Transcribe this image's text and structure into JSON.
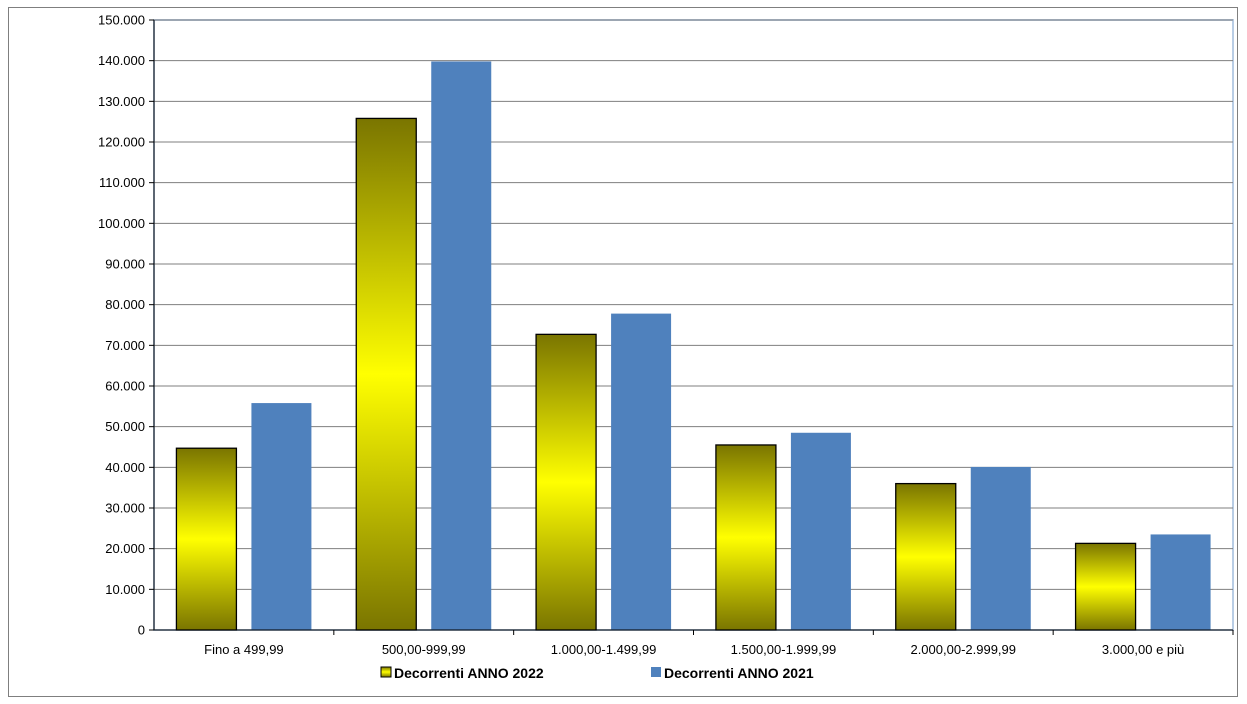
{
  "chart_data": {
    "type": "bar",
    "title": "",
    "xlabel": "",
    "ylabel": "",
    "categories": [
      "Fino a 499,99",
      "500,00-999,99",
      "1.000,00-1.499,99",
      "1.500,00-1.999,99",
      "2.000,00-2.999,99",
      "3.000,00 e più"
    ],
    "series": [
      {
        "name": "Decorrenti ANNO 2022",
        "values": [
          44700,
          125800,
          72700,
          45500,
          36000,
          21300
        ],
        "color": "#ffff00",
        "color_dark": "#7a7500"
      },
      {
        "name": "Decorrenti ANNO 2021",
        "values": [
          55800,
          139800,
          77800,
          48500,
          40100,
          23500
        ],
        "color": "#4f81bd"
      }
    ],
    "ylim": [
      0,
      150000
    ],
    "ytick_step": 10000,
    "ytick_labels": [
      "0",
      "10.000",
      "20.000",
      "30.000",
      "40.000",
      "50.000",
      "60.000",
      "70.000",
      "80.000",
      "90.000",
      "100.000",
      "110.000",
      "120.000",
      "130.000",
      "140.000",
      "150.000"
    ],
    "grid": true,
    "legend_position": "bottom",
    "plot_border_color": "#b9cde5",
    "gridline_color": "#7f7f7f"
  }
}
